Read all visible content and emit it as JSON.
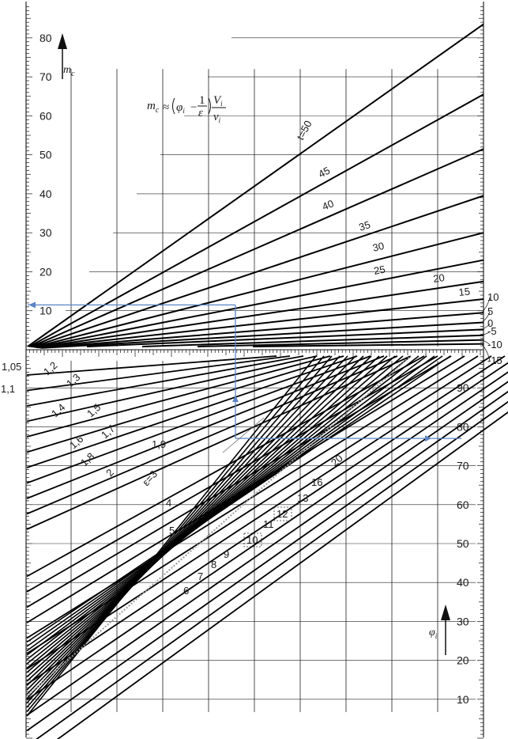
{
  "chart_data": [
    {
      "type": "line",
      "panel": "upper",
      "y_axis_label": "m",
      "y_axis_label_sub": "c",
      "y_ticks": [
        "10",
        "20",
        "30",
        "40",
        "50",
        "60",
        "70",
        "80"
      ],
      "ylim": [
        0,
        80
      ],
      "formula": {
        "lhs": "m",
        "lhs_sub": "c",
        "approx": "≈",
        "phi": "φ",
        "phi_sub": "i",
        "minus": "−",
        "one": "1",
        "eps": "ε",
        "V": "V",
        "V_sub": "i",
        "v": "v",
        "v_sub": "i"
      },
      "series": [
        {
          "label": "t=50",
          "end_value": 83.5
        },
        {
          "label": "45",
          "end_value": 65.5
        },
        {
          "label": "40",
          "end_value": 51.5
        },
        {
          "label": "35",
          "end_value": 39.5
        },
        {
          "label": "30",
          "end_value": 30.0
        },
        {
          "label": "25",
          "end_value": 23.0
        },
        {
          "label": "20",
          "end_value": 17.5
        },
        {
          "label": "15",
          "end_value": 13.0
        },
        {
          "label": "10",
          "end_value": 9.5
        },
        {
          "label": "5",
          "end_value": 7.0
        },
        {
          "label": "0",
          "end_value": 5.2
        },
        {
          "label": "-5",
          "end_value": 3.7
        },
        {
          "label": "-10",
          "end_value": 2.5
        },
        {
          "label": "-15",
          "end_value": 1.5
        }
      ],
      "right_labels": [
        "10",
        "5",
        "0",
        "-5",
        "-10",
        "-15"
      ]
    },
    {
      "type": "line",
      "panel": "lower",
      "y_axis_label": "φ",
      "y_axis_label_sub": "i",
      "y_ticks": [
        "10",
        "20",
        "30",
        "40",
        "50",
        "60",
        "70",
        "80",
        "90"
      ],
      "ylim": [
        0,
        100
      ],
      "series": [
        {
          "label": "1,05"
        },
        {
          "label": "1,1"
        },
        {
          "label": "1,2"
        },
        {
          "label": "1,3"
        },
        {
          "label": "1,4"
        },
        {
          "label": "1,5"
        },
        {
          "label": "1,6"
        },
        {
          "label": "1,7"
        },
        {
          "label": "1,8"
        },
        {
          "label": "1,9"
        },
        {
          "label": "2"
        },
        {
          "label": "ε=3"
        },
        {
          "label": "4"
        },
        {
          "label": "5"
        },
        {
          "label": "6"
        },
        {
          "label": "7"
        },
        {
          "label": "8"
        },
        {
          "label": "9"
        },
        {
          "label": "10"
        },
        {
          "label": "11"
        },
        {
          "label": "12"
        },
        {
          "label": "13"
        },
        {
          "label": "16"
        },
        {
          "label": "20"
        }
      ],
      "example_path": {
        "phi_i": 77,
        "m_c": 11.5
      }
    }
  ]
}
